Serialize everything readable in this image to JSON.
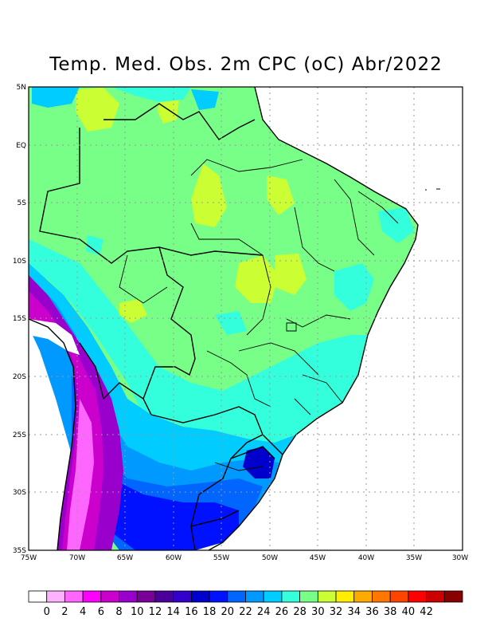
{
  "title": "Temp. Med. Obs. 2m CPC (oC) Abr/2022",
  "y_axis_labels": [
    "5N",
    "EQ",
    "5S",
    "10S",
    "15S",
    "20S",
    "25S",
    "30S",
    "35S"
  ],
  "x_axis_labels": [
    "75W",
    "70W",
    "65W",
    "60W",
    "55W",
    "50W",
    "45W",
    "40W",
    "35W",
    "30W"
  ],
  "colorbar": {
    "labels": [
      "0",
      "2",
      "4",
      "6",
      "8",
      "10",
      "12",
      "14",
      "16",
      "18",
      "20",
      "22",
      "24",
      "26",
      "28",
      "30",
      "32",
      "34",
      "36",
      "38",
      "40",
      "42"
    ],
    "colors": [
      "#ffffff",
      "#ffb3ff",
      "#ff66ff",
      "#ff00ff",
      "#cc00cc",
      "#9900cc",
      "#7a0099",
      "#4b0099",
      "#3300cc",
      "#0000cc",
      "#0011ff",
      "#0066ff",
      "#0099ff",
      "#00ccff",
      "#33ffdd",
      "#77ff88",
      "#ccff33",
      "#ffee00",
      "#ffaa00",
      "#ff7700",
      "#ff4400",
      "#ff0000",
      "#cc0000",
      "#880000"
    ]
  }
}
